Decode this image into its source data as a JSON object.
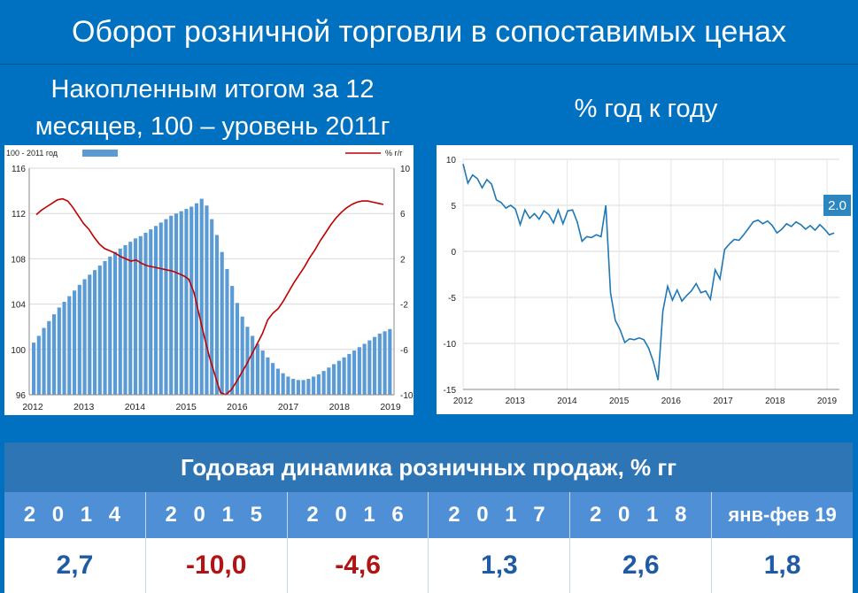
{
  "title": "Оборот розничной торговли в сопоставимых ценах",
  "left_subtitle": {
    "line1": "Накопленным итогом за 12",
    "line2": "месяцев, 100 – уровень 2011г"
  },
  "right_subtitle": "% год к году",
  "colors": {
    "background": "#0070c0",
    "bar": "#5b9bd5",
    "red_line": "#c00000",
    "blue_line": "#1f77b4",
    "header": "#2e75b6",
    "years_row": "#4f8fd6"
  },
  "chart_data": [
    {
      "type": "bar+line",
      "legend": {
        "bar_label": "100 - 2011 год",
        "line_label": "% г/г"
      },
      "x_labels": [
        "2012",
        "2013",
        "2014",
        "2015",
        "2016",
        "2017",
        "2018",
        "2019"
      ],
      "left_axis": {
        "ticks": [
          96,
          100,
          104,
          108,
          112,
          116
        ],
        "range": [
          96,
          116
        ]
      },
      "right_axis": {
        "ticks": [
          -10,
          -6,
          -2,
          2,
          6,
          10
        ],
        "range": [
          -10,
          10
        ]
      },
      "bars_index": [
        100.6,
        101.2,
        101.9,
        102.5,
        103.1,
        103.7,
        104.2,
        104.7,
        105.2,
        105.7,
        106.2,
        106.6,
        107.0,
        107.4,
        107.8,
        108.2,
        108.6,
        108.9,
        109.2,
        109.5,
        109.8,
        110.0,
        110.3,
        110.6,
        110.9,
        111.2,
        111.5,
        111.8,
        112.0,
        112.2,
        112.4,
        112.6,
        112.9,
        113.3,
        112.7,
        111.5,
        110.1,
        108.6,
        107.1,
        105.6,
        104.1,
        102.9,
        102.0,
        101.2,
        100.5,
        99.9,
        99.3,
        98.8,
        98.3,
        97.9,
        97.6,
        97.4,
        97.3,
        97.3,
        97.4,
        97.6,
        97.8,
        98.1,
        98.4,
        98.7,
        99.0,
        99.3,
        99.6,
        99.9,
        100.2,
        100.5,
        100.8,
        101.1,
        101.4,
        101.6,
        101.8
      ],
      "line_yoy": [
        5.9,
        6.3,
        6.6,
        6.9,
        7.2,
        7.3,
        7.1,
        6.5,
        5.8,
        5.1,
        4.6,
        3.9,
        3.3,
        2.9,
        2.7,
        2.5,
        2.2,
        2.0,
        1.8,
        1.9,
        1.6,
        1.4,
        1.3,
        1.2,
        1.1,
        1.0,
        0.9,
        0.7,
        0.5,
        0.2,
        -1.0,
        -3.0,
        -5.0,
        -6.8,
        -8.3,
        -9.8,
        -10.0,
        -9.6,
        -8.9,
        -8.1,
        -7.3,
        -6.4,
        -5.5,
        -4.6,
        -3.4,
        -2.8,
        -2.4,
        -1.7,
        -0.9,
        -0.1,
        0.6,
        1.3,
        2.1,
        2.8,
        3.6,
        4.3,
        5.0,
        5.6,
        6.1,
        6.5,
        6.8,
        7.0,
        7.1,
        7.1,
        7.0,
        6.9,
        6.8
      ]
    },
    {
      "type": "line",
      "x_labels": [
        "2012",
        "2013",
        "2014",
        "2015",
        "2016",
        "2017",
        "2018",
        "2019"
      ],
      "y_ticks": [
        10,
        5,
        0,
        -5,
        -10,
        -15
      ],
      "y_range": [
        -15,
        10
      ],
      "last_label": "2.0",
      "values": [
        9.5,
        7.4,
        8.3,
        7.9,
        6.9,
        7.8,
        7.3,
        5.6,
        5.3,
        4.7,
        5.0,
        4.6,
        2.9,
        4.5,
        3.6,
        4.1,
        3.5,
        4.4,
        4.0,
        3.1,
        4.5,
        3.0,
        4.4,
        4.5,
        3.2,
        1.1,
        1.6,
        1.5,
        1.8,
        1.6,
        5.0,
        -4.5,
        -7.5,
        -8.5,
        -9.9,
        -9.5,
        -9.6,
        -9.4,
        -9.6,
        -10.5,
        -12.0,
        -14.0,
        -6.5,
        -3.8,
        -5.3,
        -4.2,
        -5.4,
        -4.8,
        -4.3,
        -3.5,
        -4.5,
        -4.3,
        -5.2,
        -2.0,
        -3.0,
        0.2,
        0.8,
        1.3,
        1.2,
        1.8,
        2.5,
        3.2,
        3.4,
        3.0,
        3.3,
        2.8,
        2.0,
        2.4,
        3.0,
        2.7,
        3.2,
        2.9,
        2.4,
        2.8,
        2.3,
        2.9,
        2.4,
        1.8,
        2.0
      ]
    },
    {
      "type": "table",
      "header": "Годовая динамика розничных продаж, % гг",
      "columns": [
        {
          "year": "2 0 1 4",
          "value": "2,7",
          "sign": "pos"
        },
        {
          "year": "2 0 1 5",
          "value": "-10,0",
          "sign": "neg"
        },
        {
          "year": "2 0 1 6",
          "value": "-4,6",
          "sign": "neg"
        },
        {
          "year": "2 0 1 7",
          "value": "1,3",
          "sign": "pos"
        },
        {
          "year": "2 0 1 8",
          "value": "2,6",
          "sign": "pos"
        },
        {
          "year": "янв-фев 19",
          "value": "1,8",
          "sign": "pos"
        }
      ]
    }
  ]
}
